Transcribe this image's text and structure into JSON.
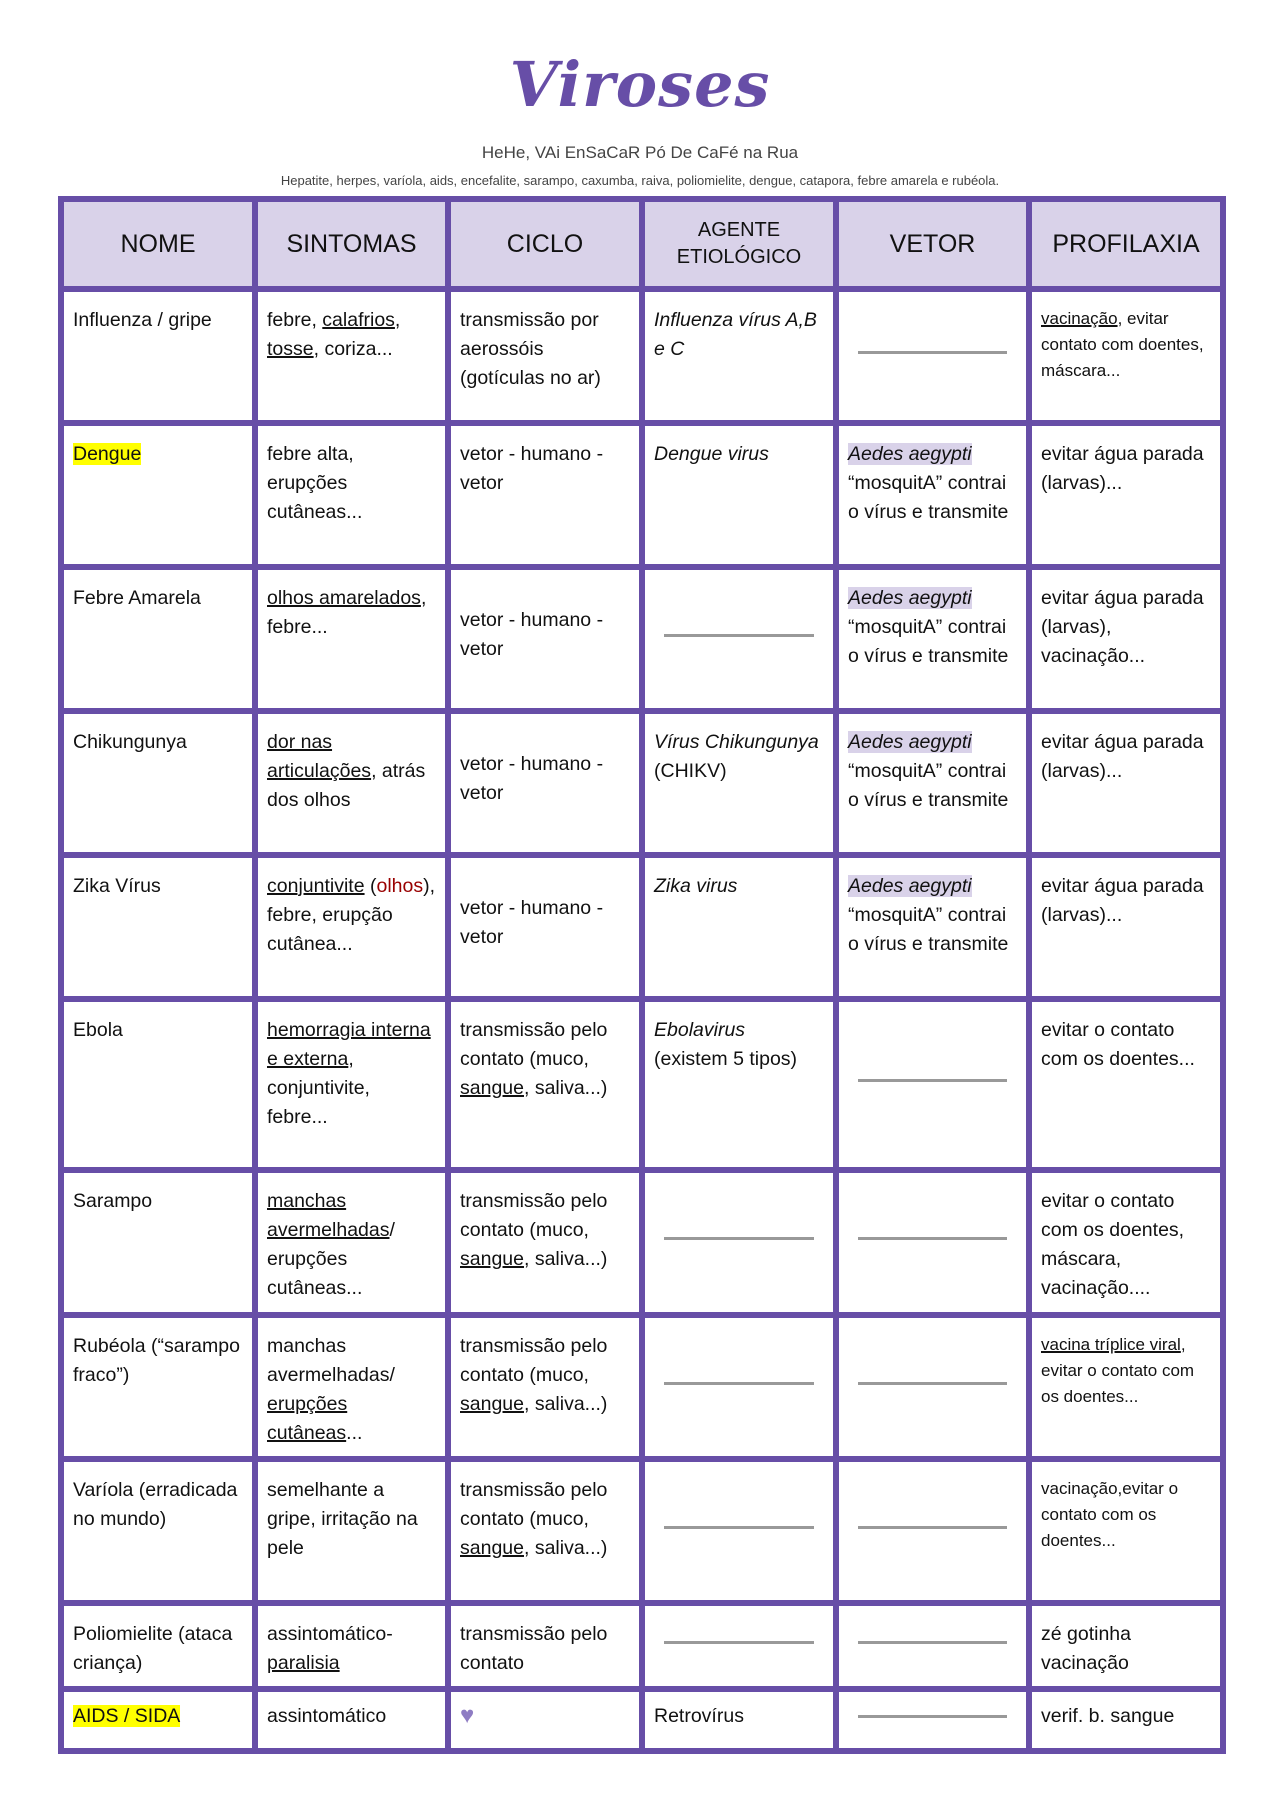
{
  "title": "Viroses",
  "mnemonic": "HeHe, VAi EnSaCaR Pó De CaFé na Rua",
  "list": "Hepatite, herpes, varíola, aids, encefalite, sarampo, caxumba, raiva, poliomielite, dengue, catapora, febre amarela e rubéola.",
  "colors": {
    "border": "#674ea7",
    "header_bg": "#d9d2e9",
    "highlight": "#ffff00",
    "red_text": "#990000"
  },
  "headers": [
    "NOME",
    "SINTOMAS",
    "CICLO",
    "AGENTE ETIOLÓGICO",
    "VETOR",
    "PROFILAXIA"
  ],
  "rows": [
    {
      "h": 134,
      "cells": [
        [
          {
            "t": "Influenza / gripe"
          }
        ],
        [
          {
            "t": "febre, "
          },
          {
            "t": "calafrios",
            "u": 1
          },
          {
            "t": ", "
          },
          {
            "t": "tosse",
            "u": 1
          },
          {
            "t": ", coriza..."
          }
        ],
        [
          {
            "t": "transmissão por aerossóis (gotículas no ar)"
          }
        ],
        [
          {
            "t": "Influenza vírus A,B e C",
            "i": 1
          }
        ],
        "dash-mid",
        {
          "small": 1,
          "segs": [
            {
              "t": "vacinação",
              "u": 1
            },
            {
              "t": ", evitar contato com doentes, máscara..."
            }
          ]
        }
      ]
    },
    {
      "h": 144,
      "cells": [
        [
          {
            "t": "Dengue",
            "hl": 1
          }
        ],
        [
          {
            "t": "febre alta, erupções cutâneas..."
          }
        ],
        [
          {
            "t": "vetor - humano - vetor"
          }
        ],
        [
          {
            "t": "Dengue virus",
            "i": 1
          }
        ],
        [
          {
            "t": "Aedes aegypti",
            "i": 1,
            "pl": 1
          },
          {
            "t": " “mosquitA” contrai o vírus e transmite"
          }
        ],
        [
          {
            "t": "evitar água parada (larvas)..."
          }
        ]
      ]
    },
    {
      "h": 144,
      "cells": [
        [
          {
            "t": "Febre Amarela"
          }
        ],
        [
          {
            "t": "olhos amarelados",
            "u": 1
          },
          {
            "t": ", febre..."
          }
        ],
        {
          "mid": 1,
          "segs": [
            {
              "t": "vetor - humano - vetor"
            }
          ]
        },
        "dash-mid",
        [
          {
            "t": "Aedes aegypti",
            "i": 1,
            "pl": 1
          },
          {
            "t": " “mosquitA” contrai o vírus e transmite"
          }
        ],
        [
          {
            "t": "evitar água parada (larvas), vacinação..."
          }
        ]
      ]
    },
    {
      "h": 144,
      "cells": [
        [
          {
            "t": "Chikungunya"
          }
        ],
        [
          {
            "t": "dor nas articulações",
            "u": 1
          },
          {
            "t": ", atrás dos olhos"
          }
        ],
        {
          "mid": 1,
          "segs": [
            {
              "t": "vetor - humano - vetor"
            }
          ]
        },
        [
          {
            "t": "Vírus Chikungunya",
            "i": 1
          },
          {
            "t": " (CHIKV)"
          }
        ],
        [
          {
            "t": "Aedes aegypti",
            "i": 1,
            "pl": 1
          },
          {
            "t": " “mosquitA” contrai o vírus e transmite"
          }
        ],
        [
          {
            "t": "evitar água parada (larvas)..."
          }
        ]
      ]
    },
    {
      "h": 144,
      "cells": [
        [
          {
            "t": "Zika Vírus"
          }
        ],
        [
          {
            "t": "conjuntivite",
            "u": 1
          },
          {
            "t": " ("
          },
          {
            "t": "olhos",
            "red": 1
          },
          {
            "t": "), febre, erupção cutânea..."
          }
        ],
        {
          "mid": 1,
          "segs": [
            {
              "t": "vetor - humano - vetor"
            }
          ]
        },
        [
          {
            "t": "Zika virus",
            "i": 1
          }
        ],
        [
          {
            "t": "Aedes aegypti",
            "i": 1,
            "pl": 1
          },
          {
            "t": " “mosquitA” contrai o vírus e transmite"
          }
        ],
        [
          {
            "t": "evitar água parada (larvas)..."
          }
        ]
      ]
    },
    {
      "h": 171,
      "cells": [
        [
          {
            "t": "Ebola"
          }
        ],
        [
          {
            "t": "hemorragia interna e externa",
            "u": 1
          },
          {
            "t": ", conjuntivite, febre..."
          }
        ],
        [
          {
            "t": "transmissão pelo contato (muco, "
          },
          {
            "t": "sangue",
            "u": 1
          },
          {
            "t": ", saliva...)"
          }
        ],
        [
          {
            "t": "Ebolavirus",
            "i": 1
          },
          {
            "t": " (existem 5 tipos)"
          }
        ],
        "dash-mid",
        [
          {
            "t": "evitar o contato com os doentes..."
          }
        ]
      ]
    },
    {
      "h": 145,
      "cells": [
        [
          {
            "t": "Sarampo"
          }
        ],
        [
          {
            "t": "manchas avermelhadas",
            "u": 1
          },
          {
            "t": "/ erupções cutâneas..."
          }
        ],
        [
          {
            "t": "transmissão pelo contato (muco, "
          },
          {
            "t": "sangue",
            "u": 1
          },
          {
            "t": ", saliva...)"
          }
        ],
        "dash-mid",
        "dash-mid",
        [
          {
            "t": "evitar o contato com os doentes, máscara, vacinação...."
          }
        ]
      ]
    },
    {
      "h": 143,
      "cells": [
        [
          {
            "t": "Rubéola (“sarampo fraco”)"
          }
        ],
        [
          {
            "t": "manchas avermelhadas/ "
          },
          {
            "t": "erupções cutâneas",
            "u": 1
          },
          {
            "t": "..."
          }
        ],
        [
          {
            "t": "transmissão pelo contato (muco, "
          },
          {
            "t": "sangue",
            "u": 1
          },
          {
            "t": ", saliva...)"
          }
        ],
        "dash-mid",
        "dash-mid",
        {
          "small": 1,
          "segs": [
            {
              "t": "vacina tríplice viral",
              "u": 1
            },
            {
              "t": ", evitar o contato com os doentes..."
            }
          ]
        }
      ]
    },
    {
      "h": 144,
      "cells": [
        [
          {
            "t": "Varíola (erradicada no mundo)"
          }
        ],
        [
          {
            "t": "semelhante a gripe, irritação na pele"
          }
        ],
        [
          {
            "t": "transmissão pelo contato (muco, "
          },
          {
            "t": "sangue",
            "u": 1
          },
          {
            "t": ", saliva...)"
          }
        ],
        "dash-mid",
        "dash-mid",
        {
          "small": 1,
          "segs": [
            {
              "t": "vacinação,evitar o contato com os doentes..."
            }
          ]
        }
      ]
    },
    {
      "h": 86,
      "cells": [
        [
          {
            "t": "Poliomielite (ataca criança)"
          }
        ],
        [
          {
            "t": "assintomático-"
          },
          {
            "t": "paralisia",
            "u": 1
          }
        ],
        [
          {
            "t": "transmissão pelo contato"
          }
        ],
        "dash-mid",
        "dash-mid",
        [
          {
            "t": "zé gotinha vacinação"
          }
        ]
      ]
    },
    {
      "h": 62,
      "cells": [
        {
          "mid": 1,
          "segs": [
            {
              "t": "AIDS / SIDA",
              "hl": 1
            }
          ]
        },
        {
          "mid": 1,
          "segs": [
            {
              "t": "assintomático"
            }
          ]
        },
        {
          "mid": 1,
          "heart": 1,
          "segs": []
        },
        {
          "mid": 1,
          "segs": [
            {
              "t": "Retrovírus"
            }
          ]
        },
        "dash-mid",
        {
          "mid": 1,
          "segs": [
            {
              "t": "verif. b. sangue"
            }
          ]
        }
      ]
    }
  ]
}
